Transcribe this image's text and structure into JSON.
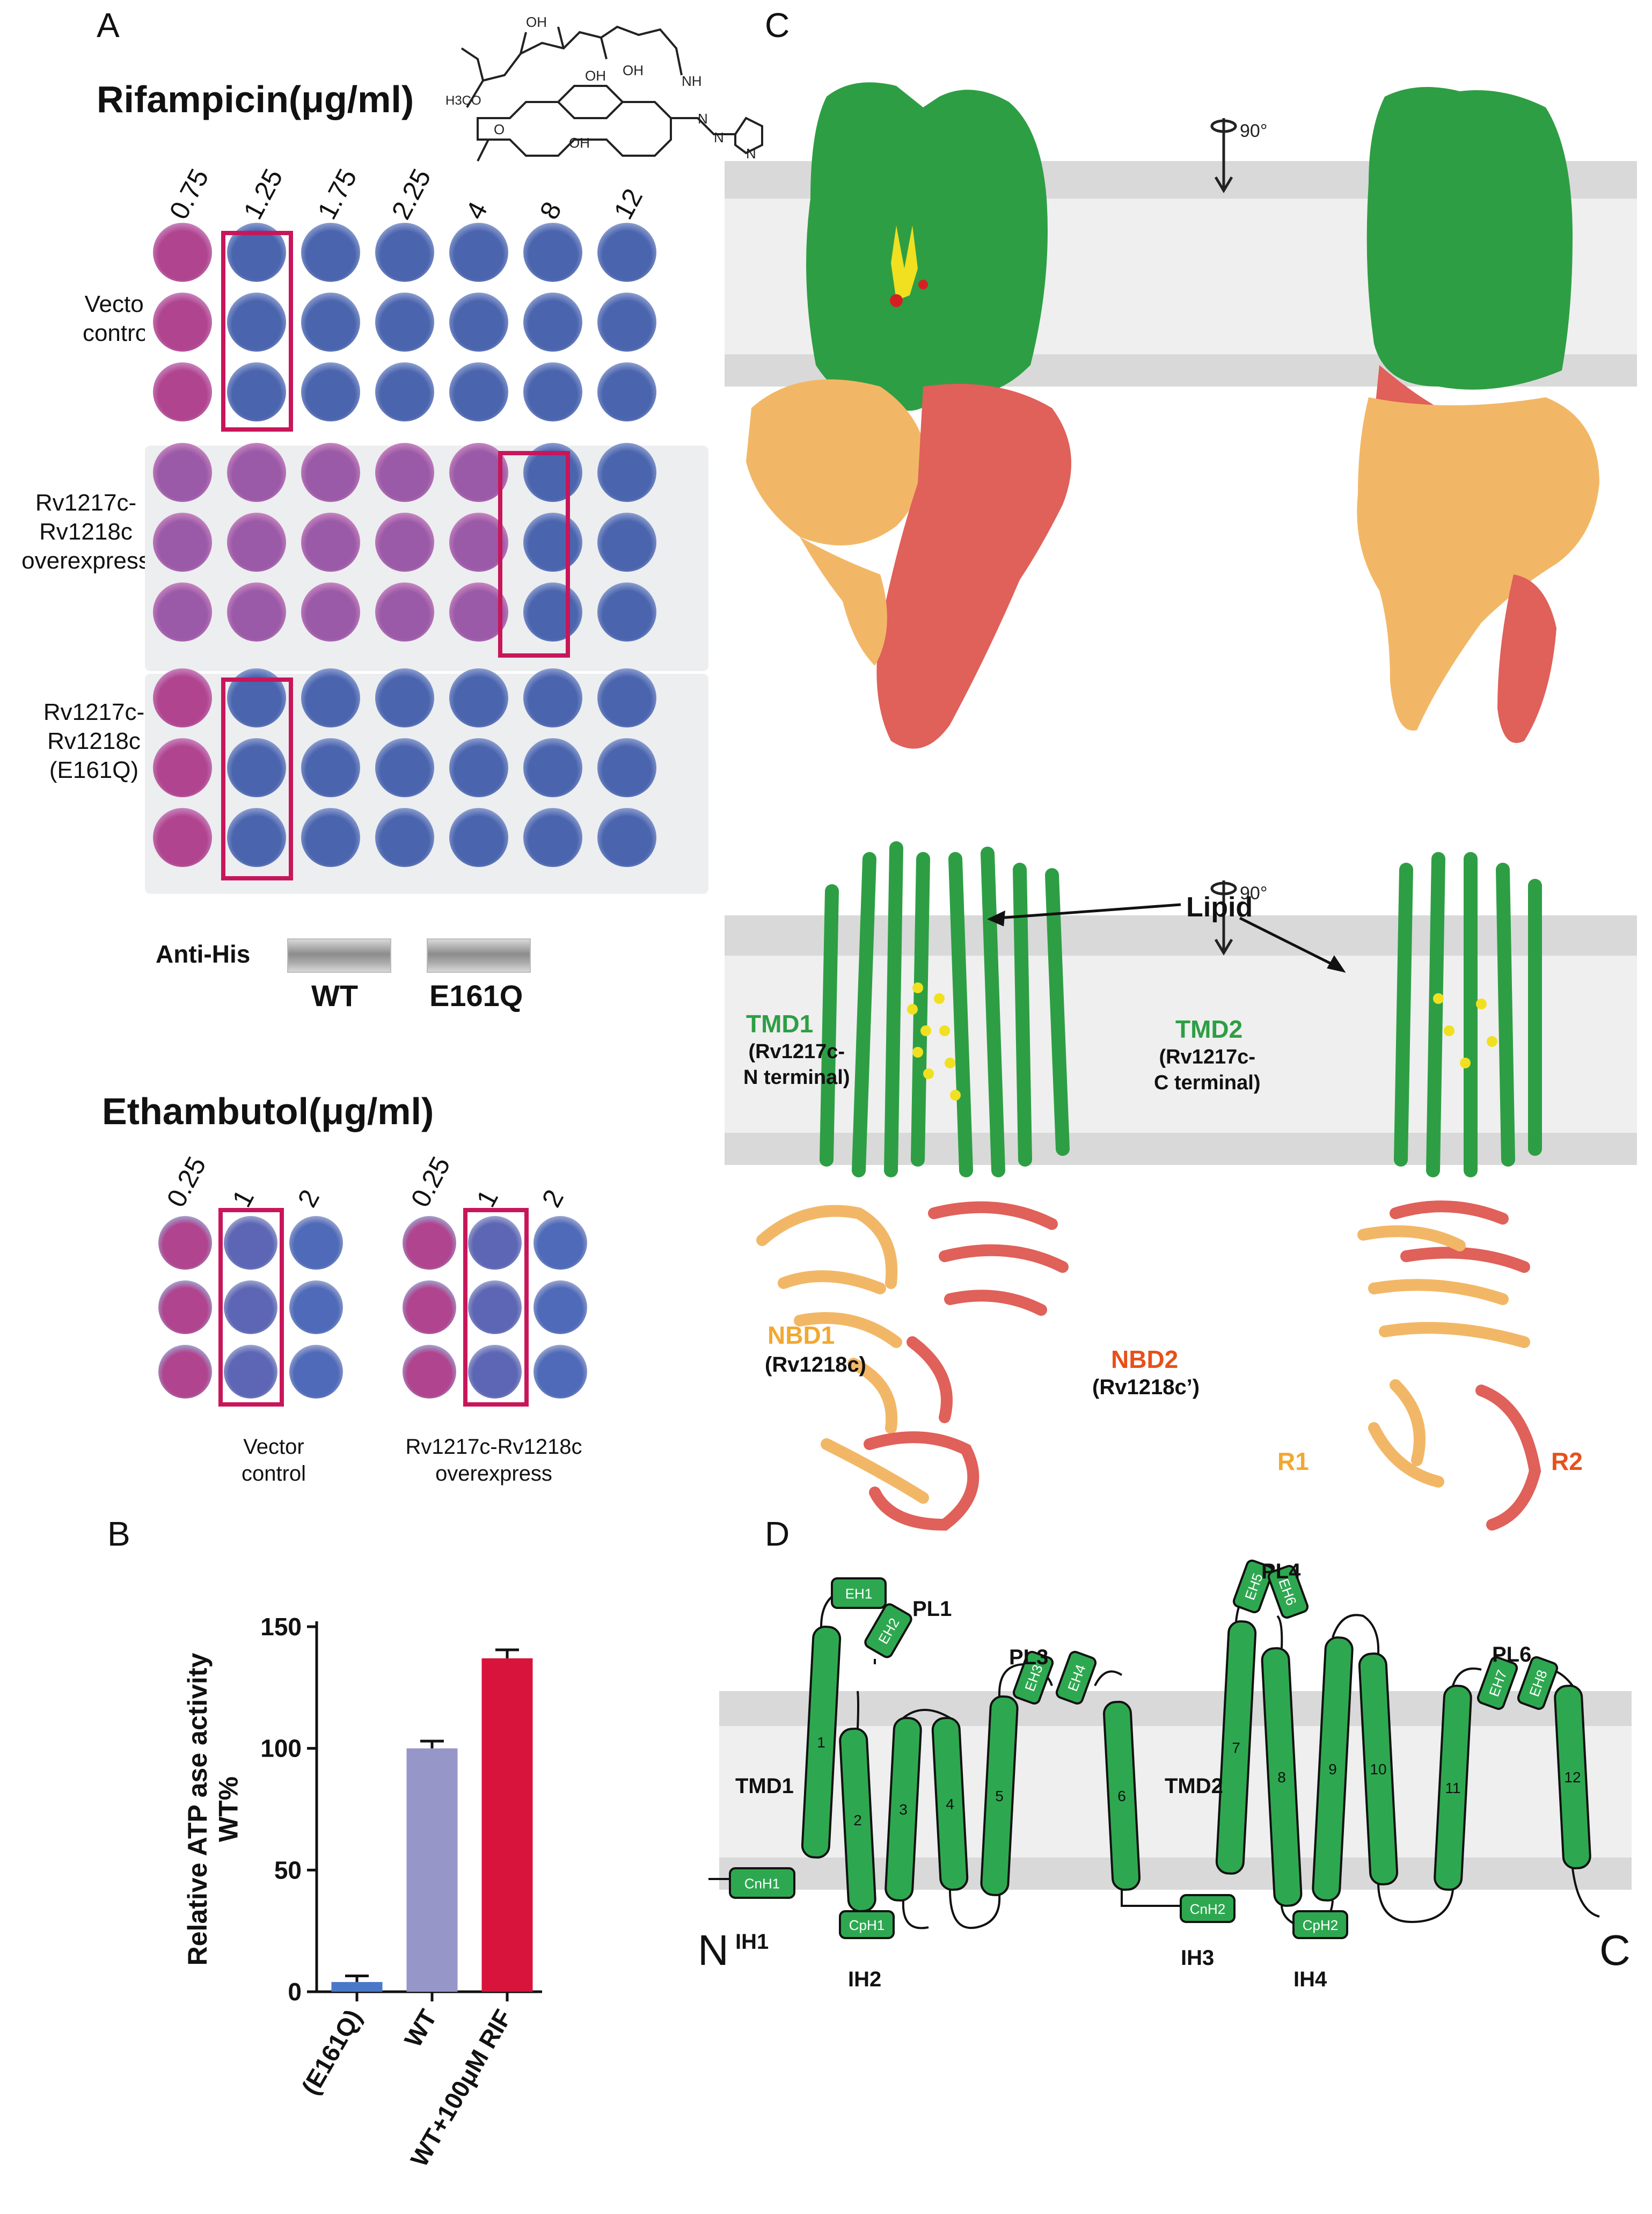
{
  "panels": {
    "A": "A",
    "B": "B",
    "C": "C",
    "D": "D"
  },
  "panel_a": {
    "rif_title": "Rifampicin(μg/ml)",
    "rif_concentrations": [
      "0.75",
      "1.25",
      "1.75",
      "2.25",
      "4",
      "8",
      "12"
    ],
    "row_groups": [
      {
        "label_lines": [
          "Vector",
          "control"
        ]
      },
      {
        "label_lines": [
          "Rv1217c-",
          "Rv1218c",
          "overexpress"
        ]
      },
      {
        "label_lines": [
          "Rv1217c-",
          "Rv1218c",
          "(E161Q)"
        ]
      }
    ],
    "molecule_labels": {
      "oh1": "OH",
      "oh2": "OH",
      "oh3": "OH",
      "oh4": "OH",
      "nh": "NH",
      "meo": "H3CO",
      "n1": "N",
      "n2": "N",
      "n3": "N",
      "o": "O"
    },
    "anti_his": "Anti-His",
    "wt": "WT",
    "e161q": "E161Q",
    "emb_title": "Ethambutol(μg/ml)",
    "emb_concentrations": [
      "0.25",
      "1",
      "2"
    ],
    "emb_groups": [
      {
        "label_lines": [
          "Vector",
          "control"
        ]
      },
      {
        "label_lines": [
          "Rv1217c-Rv1218c",
          "overexpress"
        ]
      }
    ]
  },
  "chart_data": {
    "type": "bar",
    "categories": [
      "(E161Q)",
      "WT",
      "WT+100μM RIF"
    ],
    "values": [
      4,
      100,
      137
    ],
    "errors": [
      2.5,
      3,
      3.5
    ],
    "colors": [
      "#4a78c8",
      "#9696c8",
      "#d8143c"
    ],
    "ylabel": "Relative ATP ase activity WT%",
    "ylim": [
      0,
      150
    ],
    "yticks": [
      0,
      50,
      100,
      150
    ]
  },
  "panel_c": {
    "rotation": "90°",
    "rotation2": "90°",
    "lipid": "Lipid",
    "tmd1": "TMD1",
    "tmd1_sub": [
      "(Rv1217c-",
      "N terminal)"
    ],
    "tmd2": "TMD2",
    "tmd2_sub": [
      "(Rv1217c-",
      "C terminal)"
    ],
    "nbd1": "NBD1",
    "nbd1_sub": "(Rv1218c)",
    "nbd2": "NBD2",
    "nbd2_sub": "(Rv1218c’)",
    "r1": "R1",
    "r2": "R2",
    "colors": {
      "tmd": "#2e9e44",
      "nbd1": "#f2b766",
      "nbd2": "#e0605a",
      "lipid": "#f0e020"
    }
  },
  "panel_d": {
    "tmd1": "TMD1",
    "tmd2": "TMD2",
    "n_term": "N",
    "c_term": "C",
    "helices": [
      "1",
      "2",
      "3",
      "4",
      "5",
      "6",
      "7",
      "8",
      "9",
      "10",
      "11",
      "12"
    ],
    "small_helices": [
      "EH1",
      "EH2",
      "EH3",
      "EH4",
      "EH5",
      "EH6",
      "EH7",
      "EH8",
      "CnH1",
      "CpH1",
      "CnH2",
      "CpH2"
    ],
    "loops": [
      "PL1",
      "PL3",
      "PL4",
      "PL6",
      "IH1",
      "IH2",
      "IH3",
      "IH4"
    ]
  }
}
